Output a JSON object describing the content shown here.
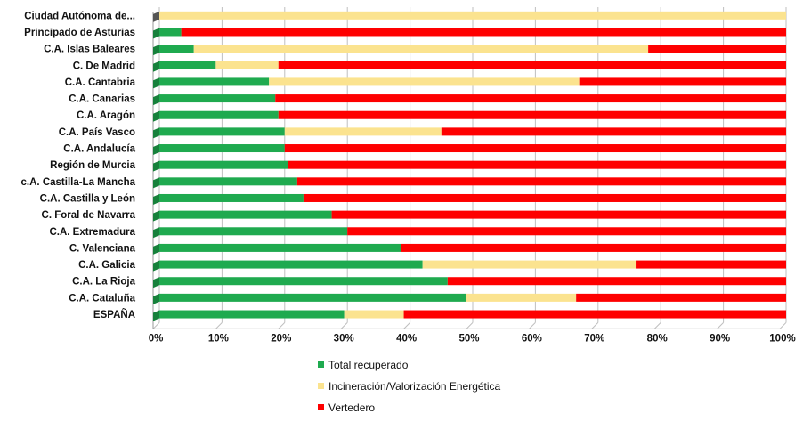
{
  "chart_data": {
    "type": "bar",
    "orientation": "horizontal",
    "stacked": true,
    "percent_stacked": true,
    "categories": [
      "Ciudad Autónoma de...",
      "Principado de Asturias",
      "C.A. Islas Baleares",
      "C. De Madrid",
      "C.A. Cantabria",
      "C.A. Canarias",
      "C.A. Aragón",
      "C.A. País Vasco",
      "C.A. Andalucía",
      "Región de Murcia",
      "c.A. Castilla-La Mancha",
      "C.A. Castilla y León",
      "C. Foral de Navarra",
      "C.A. Extremadura",
      "C. Valenciana",
      "C.A. Galicia",
      "C.A. La Rioja",
      "C.A. Cataluña",
      "ESPAÑA"
    ],
    "series": [
      {
        "name": "Total recuperado",
        "color": "#1faa4f",
        "values": [
          0,
          3.5,
          5.5,
          9,
          17.5,
          18.5,
          19,
          20,
          20,
          20.5,
          22,
          23,
          27.5,
          30,
          38.5,
          42,
          46,
          49,
          29.5
        ]
      },
      {
        "name": "Incineración/Valorización Energética",
        "color": "#fbe38f",
        "values": [
          100,
          0,
          72.5,
          10,
          49.5,
          0,
          0,
          25,
          0,
          0,
          0,
          0,
          0,
          0,
          0,
          34,
          0,
          17.5,
          9.5
        ]
      },
      {
        "name": "Vertedero",
        "color": "#fe0000",
        "values": [
          0,
          96.5,
          22,
          81,
          33,
          81.5,
          81,
          55,
          80,
          79.5,
          78,
          77,
          72.5,
          70,
          61.5,
          24,
          54,
          33.5,
          61
        ]
      }
    ],
    "x_ticks": [
      "0%",
      "10%",
      "20%",
      "30%",
      "40%",
      "50%",
      "60%",
      "70%",
      "80%",
      "90%",
      "100%"
    ],
    "xlim": [
      0,
      100
    ],
    "grid": true,
    "legend_position": "bottom",
    "title": "",
    "xlabel": "",
    "ylabel": ""
  }
}
